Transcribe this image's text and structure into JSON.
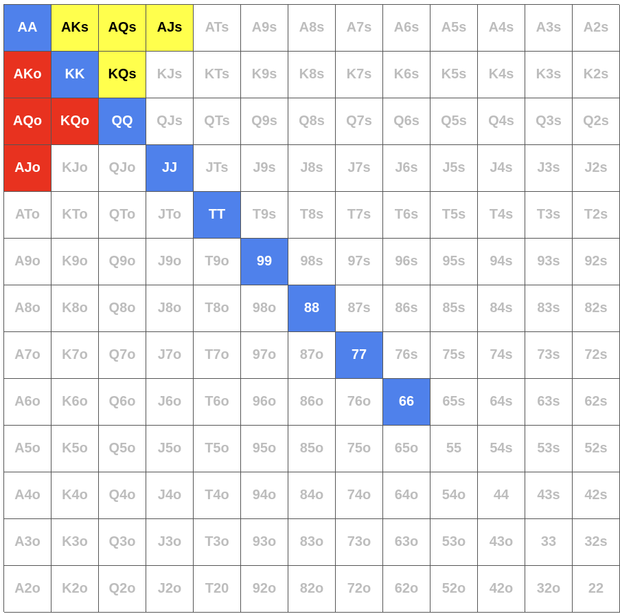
{
  "colors": {
    "pair": "#4f81eb",
    "suited": "#ffff4d",
    "offsuit": "#e8321f",
    "unselected": "#ffffff",
    "unselected_text": "#bdbdbd",
    "border": "#555555"
  },
  "grid": {
    "rows": [
      [
        {
          "label": "AA",
          "state": "pair"
        },
        {
          "label": "AKs",
          "state": "suited"
        },
        {
          "label": "AQs",
          "state": "suited"
        },
        {
          "label": "AJs",
          "state": "suited"
        },
        {
          "label": "ATs",
          "state": "none"
        },
        {
          "label": "A9s",
          "state": "none"
        },
        {
          "label": "A8s",
          "state": "none"
        },
        {
          "label": "A7s",
          "state": "none"
        },
        {
          "label": "A6s",
          "state": "none"
        },
        {
          "label": "A5s",
          "state": "none"
        },
        {
          "label": "A4s",
          "state": "none"
        },
        {
          "label": "A3s",
          "state": "none"
        },
        {
          "label": "A2s",
          "state": "none"
        }
      ],
      [
        {
          "label": "AKo",
          "state": "offsuit"
        },
        {
          "label": "KK",
          "state": "pair"
        },
        {
          "label": "KQs",
          "state": "suited"
        },
        {
          "label": "KJs",
          "state": "none"
        },
        {
          "label": "KTs",
          "state": "none"
        },
        {
          "label": "K9s",
          "state": "none"
        },
        {
          "label": "K8s",
          "state": "none"
        },
        {
          "label": "K7s",
          "state": "none"
        },
        {
          "label": "K6s",
          "state": "none"
        },
        {
          "label": "K5s",
          "state": "none"
        },
        {
          "label": "K4s",
          "state": "none"
        },
        {
          "label": "K3s",
          "state": "none"
        },
        {
          "label": "K2s",
          "state": "none"
        }
      ],
      [
        {
          "label": "AQo",
          "state": "offsuit"
        },
        {
          "label": "KQo",
          "state": "offsuit"
        },
        {
          "label": "QQ",
          "state": "pair"
        },
        {
          "label": "QJs",
          "state": "none"
        },
        {
          "label": "QTs",
          "state": "none"
        },
        {
          "label": "Q9s",
          "state": "none"
        },
        {
          "label": "Q8s",
          "state": "none"
        },
        {
          "label": "Q7s",
          "state": "none"
        },
        {
          "label": "Q6s",
          "state": "none"
        },
        {
          "label": "Q5s",
          "state": "none"
        },
        {
          "label": "Q4s",
          "state": "none"
        },
        {
          "label": "Q3s",
          "state": "none"
        },
        {
          "label": "Q2s",
          "state": "none"
        }
      ],
      [
        {
          "label": "AJo",
          "state": "offsuit"
        },
        {
          "label": "KJo",
          "state": "none"
        },
        {
          "label": "QJo",
          "state": "none"
        },
        {
          "label": "JJ",
          "state": "pair"
        },
        {
          "label": "JTs",
          "state": "none"
        },
        {
          "label": "J9s",
          "state": "none"
        },
        {
          "label": "J8s",
          "state": "none"
        },
        {
          "label": "J7s",
          "state": "none"
        },
        {
          "label": "J6s",
          "state": "none"
        },
        {
          "label": "J5s",
          "state": "none"
        },
        {
          "label": "J4s",
          "state": "none"
        },
        {
          "label": "J3s",
          "state": "none"
        },
        {
          "label": "J2s",
          "state": "none"
        }
      ],
      [
        {
          "label": "ATo",
          "state": "none"
        },
        {
          "label": "KTo",
          "state": "none"
        },
        {
          "label": "QTo",
          "state": "none"
        },
        {
          "label": "JTo",
          "state": "none"
        },
        {
          "label": "TT",
          "state": "pair"
        },
        {
          "label": "T9s",
          "state": "none"
        },
        {
          "label": "T8s",
          "state": "none"
        },
        {
          "label": "T7s",
          "state": "none"
        },
        {
          "label": "T6s",
          "state": "none"
        },
        {
          "label": "T5s",
          "state": "none"
        },
        {
          "label": "T4s",
          "state": "none"
        },
        {
          "label": "T3s",
          "state": "none"
        },
        {
          "label": "T2s",
          "state": "none"
        }
      ],
      [
        {
          "label": "A9o",
          "state": "none"
        },
        {
          "label": "K9o",
          "state": "none"
        },
        {
          "label": "Q9o",
          "state": "none"
        },
        {
          "label": "J9o",
          "state": "none"
        },
        {
          "label": "T9o",
          "state": "none"
        },
        {
          "label": "99",
          "state": "pair"
        },
        {
          "label": "98s",
          "state": "none"
        },
        {
          "label": "97s",
          "state": "none"
        },
        {
          "label": "96s",
          "state": "none"
        },
        {
          "label": "95s",
          "state": "none"
        },
        {
          "label": "94s",
          "state": "none"
        },
        {
          "label": "93s",
          "state": "none"
        },
        {
          "label": "92s",
          "state": "none"
        }
      ],
      [
        {
          "label": "A8o",
          "state": "none"
        },
        {
          "label": "K8o",
          "state": "none"
        },
        {
          "label": "Q8o",
          "state": "none"
        },
        {
          "label": "J8o",
          "state": "none"
        },
        {
          "label": "T8o",
          "state": "none"
        },
        {
          "label": "98o",
          "state": "none"
        },
        {
          "label": "88",
          "state": "pair"
        },
        {
          "label": "87s",
          "state": "none"
        },
        {
          "label": "86s",
          "state": "none"
        },
        {
          "label": "85s",
          "state": "none"
        },
        {
          "label": "84s",
          "state": "none"
        },
        {
          "label": "83s",
          "state": "none"
        },
        {
          "label": "82s",
          "state": "none"
        }
      ],
      [
        {
          "label": "A7o",
          "state": "none"
        },
        {
          "label": "K7o",
          "state": "none"
        },
        {
          "label": "Q7o",
          "state": "none"
        },
        {
          "label": "J7o",
          "state": "none"
        },
        {
          "label": "T7o",
          "state": "none"
        },
        {
          "label": "97o",
          "state": "none"
        },
        {
          "label": "87o",
          "state": "none"
        },
        {
          "label": "77",
          "state": "pair"
        },
        {
          "label": "76s",
          "state": "none"
        },
        {
          "label": "75s",
          "state": "none"
        },
        {
          "label": "74s",
          "state": "none"
        },
        {
          "label": "73s",
          "state": "none"
        },
        {
          "label": "72s",
          "state": "none"
        }
      ],
      [
        {
          "label": "A6o",
          "state": "none"
        },
        {
          "label": "K6o",
          "state": "none"
        },
        {
          "label": "Q6o",
          "state": "none"
        },
        {
          "label": "J6o",
          "state": "none"
        },
        {
          "label": "T6o",
          "state": "none"
        },
        {
          "label": "96o",
          "state": "none"
        },
        {
          "label": "86o",
          "state": "none"
        },
        {
          "label": "76o",
          "state": "none"
        },
        {
          "label": "66",
          "state": "pair"
        },
        {
          "label": "65s",
          "state": "none"
        },
        {
          "label": "64s",
          "state": "none"
        },
        {
          "label": "63s",
          "state": "none"
        },
        {
          "label": "62s",
          "state": "none"
        }
      ],
      [
        {
          "label": "A5o",
          "state": "none"
        },
        {
          "label": "K5o",
          "state": "none"
        },
        {
          "label": "Q5o",
          "state": "none"
        },
        {
          "label": "J5o",
          "state": "none"
        },
        {
          "label": "T5o",
          "state": "none"
        },
        {
          "label": "95o",
          "state": "none"
        },
        {
          "label": "85o",
          "state": "none"
        },
        {
          "label": "75o",
          "state": "none"
        },
        {
          "label": "65o",
          "state": "none"
        },
        {
          "label": "55",
          "state": "none"
        },
        {
          "label": "54s",
          "state": "none"
        },
        {
          "label": "53s",
          "state": "none"
        },
        {
          "label": "52s",
          "state": "none"
        }
      ],
      [
        {
          "label": "A4o",
          "state": "none"
        },
        {
          "label": "K4o",
          "state": "none"
        },
        {
          "label": "Q4o",
          "state": "none"
        },
        {
          "label": "J4o",
          "state": "none"
        },
        {
          "label": "T4o",
          "state": "none"
        },
        {
          "label": "94o",
          "state": "none"
        },
        {
          "label": "84o",
          "state": "none"
        },
        {
          "label": "74o",
          "state": "none"
        },
        {
          "label": "64o",
          "state": "none"
        },
        {
          "label": "54o",
          "state": "none"
        },
        {
          "label": "44",
          "state": "none"
        },
        {
          "label": "43s",
          "state": "none"
        },
        {
          "label": "42s",
          "state": "none"
        }
      ],
      [
        {
          "label": "A3o",
          "state": "none"
        },
        {
          "label": "K3o",
          "state": "none"
        },
        {
          "label": "Q3o",
          "state": "none"
        },
        {
          "label": "J3o",
          "state": "none"
        },
        {
          "label": "T3o",
          "state": "none"
        },
        {
          "label": "93o",
          "state": "none"
        },
        {
          "label": "83o",
          "state": "none"
        },
        {
          "label": "73o",
          "state": "none"
        },
        {
          "label": "63o",
          "state": "none"
        },
        {
          "label": "53o",
          "state": "none"
        },
        {
          "label": "43o",
          "state": "none"
        },
        {
          "label": "33",
          "state": "none"
        },
        {
          "label": "32s",
          "state": "none"
        }
      ],
      [
        {
          "label": "A2o",
          "state": "none"
        },
        {
          "label": "K2o",
          "state": "none"
        },
        {
          "label": "Q2o",
          "state": "none"
        },
        {
          "label": "J2o",
          "state": "none"
        },
        {
          "label": "T20",
          "state": "none"
        },
        {
          "label": "92o",
          "state": "none"
        },
        {
          "label": "82o",
          "state": "none"
        },
        {
          "label": "72o",
          "state": "none"
        },
        {
          "label": "62o",
          "state": "none"
        },
        {
          "label": "52o",
          "state": "none"
        },
        {
          "label": "42o",
          "state": "none"
        },
        {
          "label": "32o",
          "state": "none"
        },
        {
          "label": "22",
          "state": "none"
        }
      ]
    ]
  }
}
